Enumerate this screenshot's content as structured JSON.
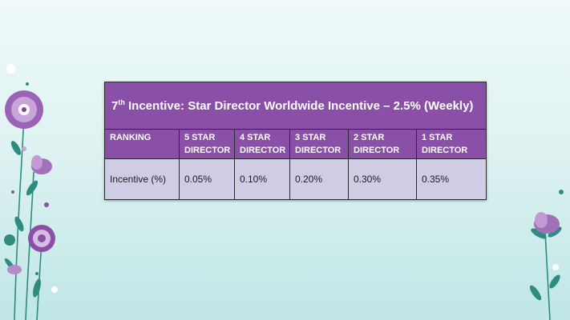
{
  "table": {
    "title_prefix": "7",
    "title_sup": "th",
    "title_rest": " Incentive: Star Director Worldwide Incentive – 2.5% (Weekly)",
    "headers": [
      "RANKING",
      "5 STAR\nDIRECTOR",
      "4 STAR\nDIRECTOR",
      "3 STAR\nDIRECTOR",
      "2 STAR\nDIRECTOR",
      "1 STAR\nDIRECTOR"
    ],
    "row": [
      "Incentive (%)",
      "0.05%",
      "0.10%",
      "0.20%",
      "0.30%",
      "0.35%"
    ]
  },
  "colors": {
    "header_purple": "#8a4fa6",
    "cell_lavender": "#cfcde6",
    "background_teal": "#bfe6e6"
  }
}
